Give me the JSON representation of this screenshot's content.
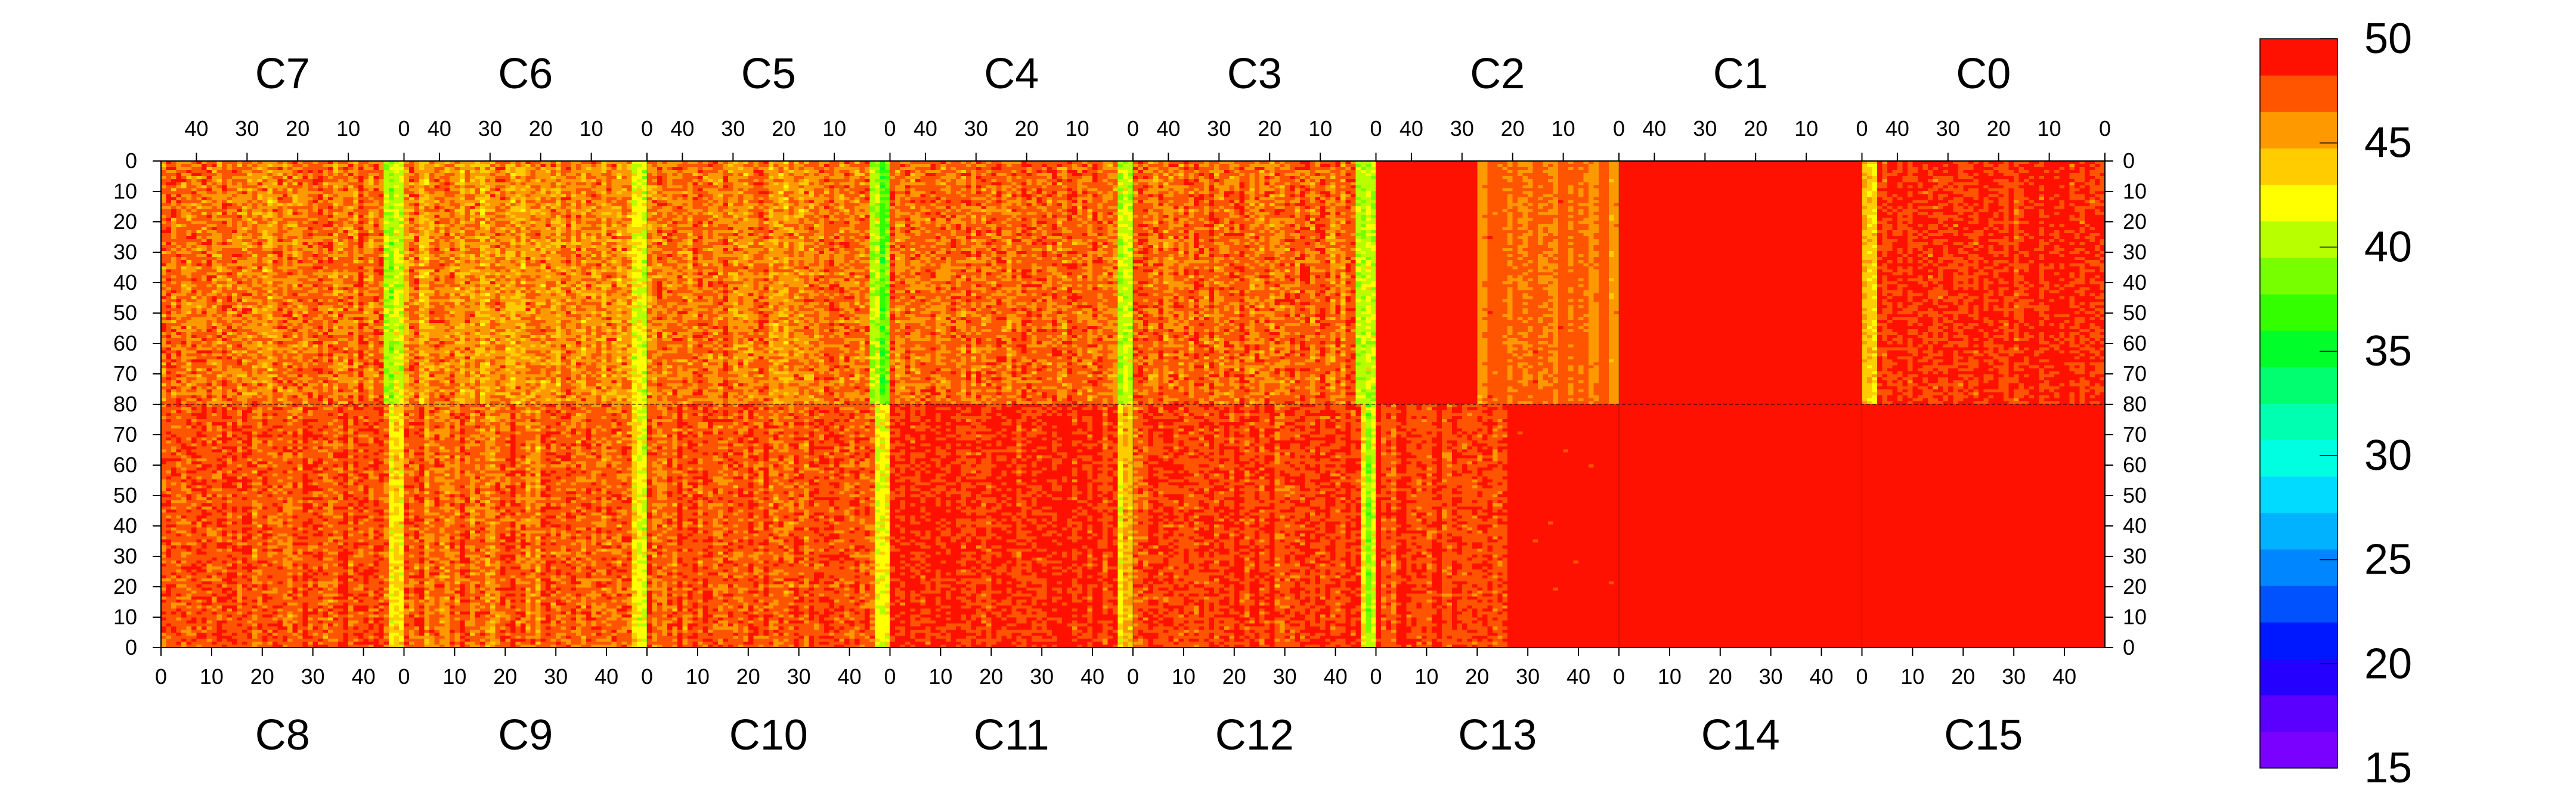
{
  "chart_data": {
    "type": "heatmap",
    "title": "",
    "colorbar": {
      "min": 15,
      "max": 50,
      "levels": 20,
      "tick_values": [
        15,
        20,
        25,
        30,
        35,
        40,
        45,
        50
      ],
      "tick_labels": [
        "15",
        "20",
        "25",
        "30",
        "35",
        "40",
        "45",
        "50"
      ],
      "palette": [
        "#7a00ff",
        "#5a00ff",
        "#2600ff",
        "#0018ff",
        "#0052ff",
        "#0086ff",
        "#00b2ff",
        "#00dbff",
        "#00ffe0",
        "#00ffb0",
        "#00ff70",
        "#00ff2a",
        "#33ff00",
        "#77ff00",
        "#b8ff00",
        "#ffff00",
        "#ffcc00",
        "#ff9900",
        "#ff5500",
        "#ff1100"
      ]
    },
    "top_row": {
      "chips": [
        "C7",
        "C6",
        "C5",
        "C4",
        "C3",
        "C2",
        "C1",
        "C0"
      ],
      "x_tick_labels": [
        "40",
        "30",
        "20",
        "10",
        "0"
      ],
      "y_tick_labels": [
        "0",
        "10",
        "20",
        "30",
        "40",
        "50",
        "60",
        "70",
        "80"
      ],
      "column_range": [
        0,
        47
      ],
      "row_range": [
        0,
        80
      ],
      "column_axis_reversed": true,
      "row_axis_reversed": false
    },
    "bottom_row": {
      "chips": [
        "C8",
        "C9",
        "C10",
        "C11",
        "C12",
        "C13",
        "C14",
        "C15"
      ],
      "x_tick_labels": [
        "0",
        "10",
        "20",
        "30",
        "40"
      ],
      "y_tick_labels": [
        "80",
        "70",
        "60",
        "50",
        "40",
        "30",
        "20",
        "10",
        "0"
      ],
      "column_range": [
        0,
        47
      ],
      "row_range": [
        0,
        80
      ],
      "column_axis_reversed": false,
      "row_axis_reversed": true
    },
    "chip_profiles": {
      "C7": {
        "mean": 46.5,
        "spread": 2.8,
        "low_edge": "right",
        "edge_cols": 4,
        "edge_mean": 40.5
      },
      "C6": {
        "mean": 46.0,
        "spread": 2.8,
        "low_edge": "right",
        "edge_cols": 3,
        "edge_mean": 42.0
      },
      "C5": {
        "mean": 46.5,
        "spread": 2.7,
        "low_edge": "right",
        "edge_cols": 4,
        "edge_mean": 39.5
      },
      "C4": {
        "mean": 47.0,
        "spread": 2.5,
        "low_edge": "right",
        "edge_cols": 3,
        "edge_mean": 41.5
      },
      "C3": {
        "mean": 47.0,
        "spread": 2.6,
        "low_edge": "right",
        "edge_cols": 4,
        "edge_mean": 40.5
      },
      "C2": {
        "mean": 50.0,
        "spread": 0.8,
        "low_edge": "right",
        "edge_cols": 2,
        "edge_mean": 46.0,
        "noisy_cols": [
          20,
          47
        ],
        "noisy_mean": 46.8
      },
      "C1": {
        "mean": 50.0,
        "spread": 0.5
      },
      "C0": {
        "mean": 48.5,
        "spread": 1.8,
        "low_edge": "left",
        "edge_cols": 3,
        "edge_mean": 43.5
      },
      "C8": {
        "mean": 47.5,
        "spread": 2.4,
        "low_edge": "right",
        "edge_cols": 3,
        "edge_mean": 42.5
      },
      "C9": {
        "mean": 47.0,
        "spread": 2.5,
        "low_edge": "right",
        "edge_cols": 3,
        "edge_mean": 42.5
      },
      "C10": {
        "mean": 47.5,
        "spread": 2.4,
        "low_edge": "right",
        "edge_cols": 3,
        "edge_mean": 42.5
      },
      "C11": {
        "mean": 48.5,
        "spread": 2.0,
        "low_edge": "right",
        "edge_cols": 3,
        "edge_mean": 44.0
      },
      "C12": {
        "mean": 48.0,
        "spread": 2.2,
        "low_edge": "right",
        "edge_cols": 3,
        "edge_mean": 41.0
      },
      "C13": {
        "mean": 48.0,
        "spread": 1.8,
        "noisy_cols": [
          0,
          25
        ],
        "flat_mean": 50.0
      },
      "C14": {
        "mean": 50.0,
        "spread": 0.4
      },
      "C15": {
        "mean": 50.0,
        "spread": 0.4
      }
    },
    "grid": false,
    "legend": "colorbar-right"
  }
}
